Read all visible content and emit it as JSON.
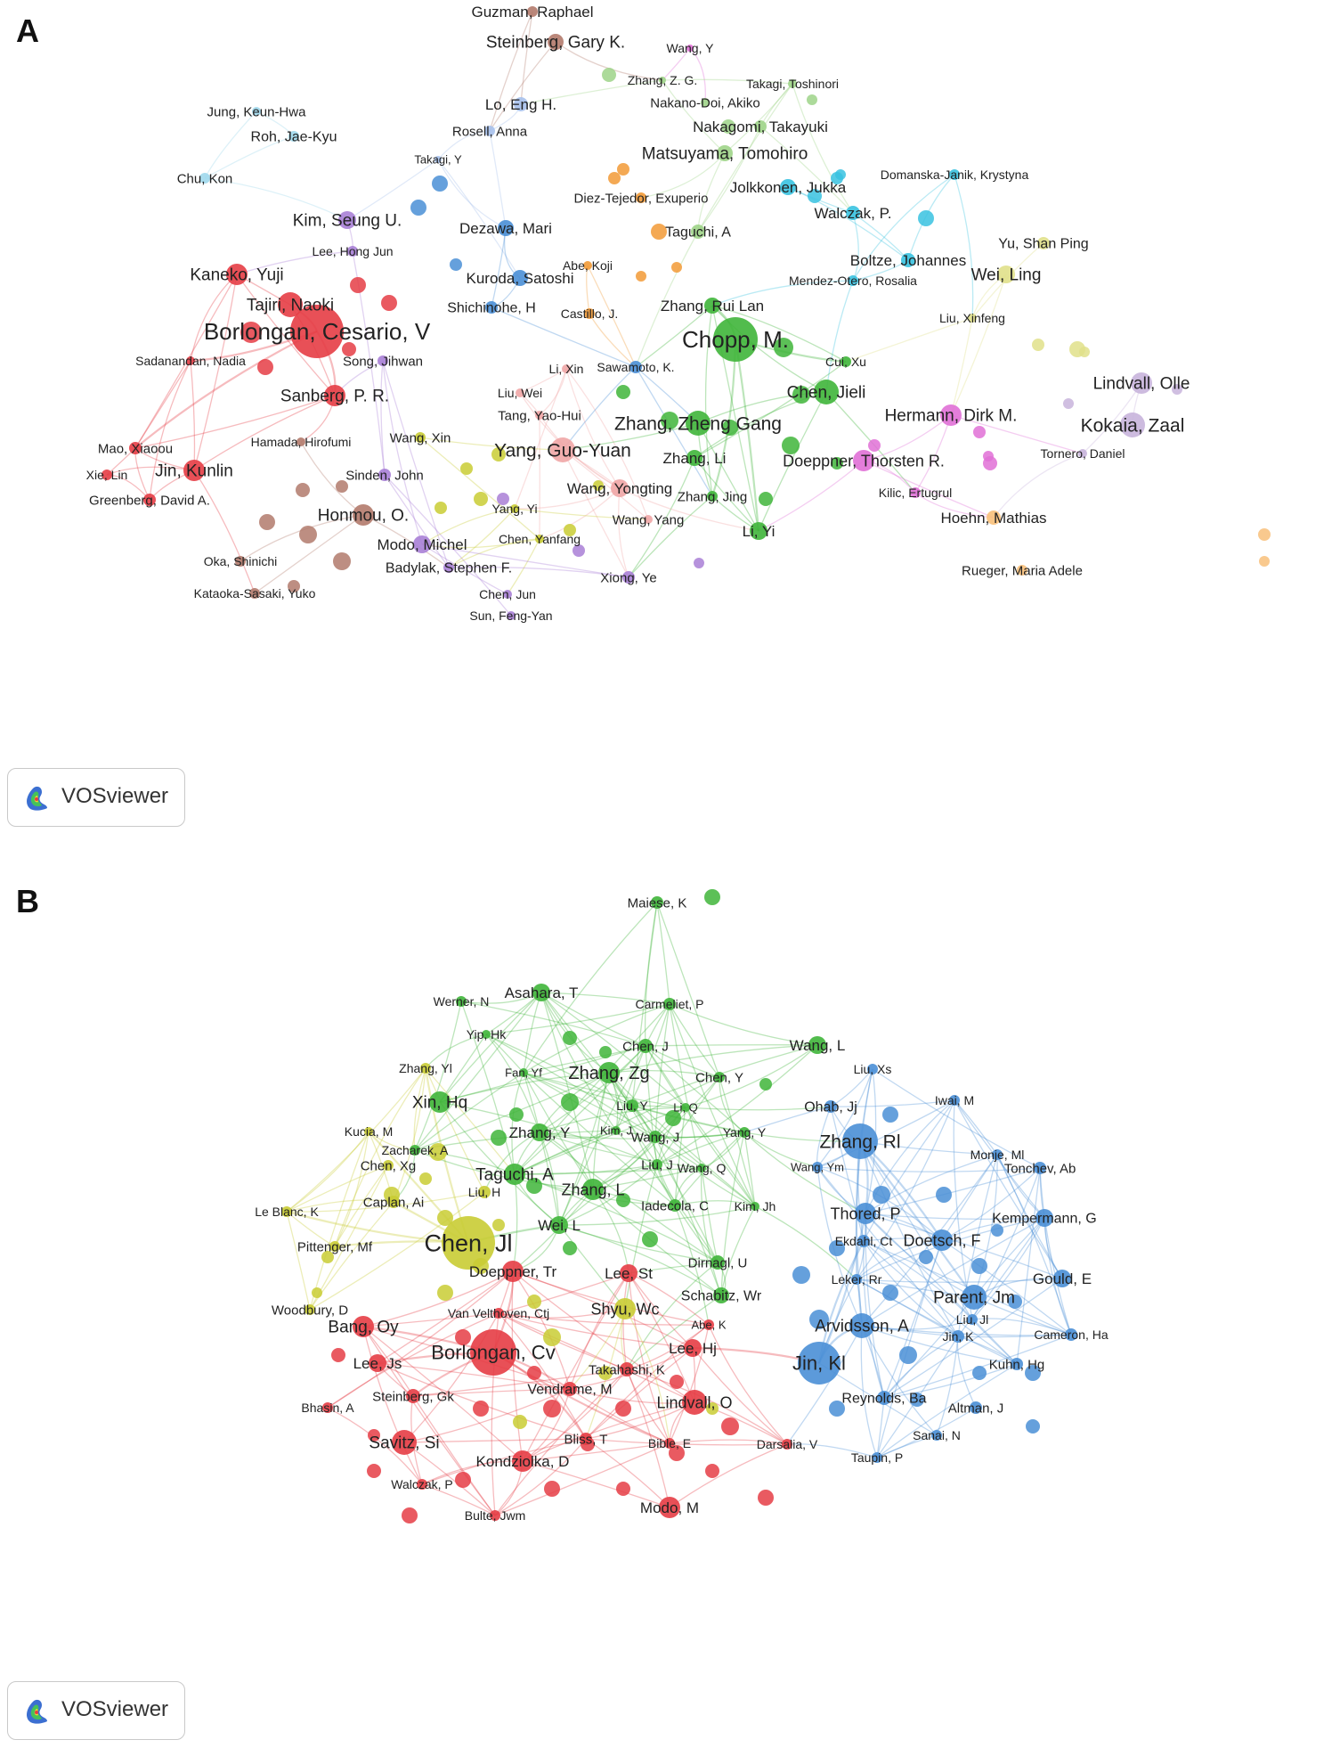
{
  "panels": [
    {
      "letter": "A",
      "logo_text": "VOSviewer",
      "colors": {
        "red": "#e53d45",
        "green": "#3fb53a",
        "blue": "#4a8fd6",
        "yellow": "#c9cc34",
        "purple": "#a97fd6",
        "brown": "#b27a6c",
        "orange": "#f29a36",
        "cyan": "#38c2e0",
        "lightblue": "#a7c1ec",
        "pink": "#e070d6",
        "lightgreen": "#9ed488",
        "lavender": "#c8b4dc",
        "paleyellow": "#e0e08a",
        "salmon": "#f0a6a6",
        "peach": "#f8c07a",
        "skyblue": "#9fd8ec"
      },
      "nodes": [
        {
          "label": "Guzman, Raphael",
          "c": "brown",
          "s": 6,
          "fs": 17
        },
        {
          "label": "Steinberg, Gary K.",
          "c": "brown",
          "s": 9,
          "fs": 19
        },
        {
          "label": "Wang, Y",
          "c": "pink",
          "s": 4,
          "fs": 14
        },
        {
          "label": "Zhang, Z. G.",
          "c": "lightgreen",
          "s": 4,
          "fs": 14
        },
        {
          "label": "Takagi, Toshinori",
          "c": "lightgreen",
          "s": 5,
          "fs": 14
        },
        {
          "label": "Nakano-Doi, Akiko",
          "c": "lightgreen",
          "s": 5,
          "fs": 15
        },
        {
          "label": "Nakagomi, Takayuki",
          "c": "lightgreen",
          "s": 7,
          "fs": 17
        },
        {
          "label": "Matsuyama, Tomohiro",
          "c": "lightgreen",
          "s": 9,
          "fs": 19
        },
        {
          "label": "Jung, Keun-Hwa",
          "c": "skyblue",
          "s": 5,
          "fs": 15
        },
        {
          "label": "Roh, Jae-Kyu",
          "c": "skyblue",
          "s": 6,
          "fs": 16
        },
        {
          "label": "Chu, Kon",
          "c": "skyblue",
          "s": 6,
          "fs": 15
        },
        {
          "label": "Lo, Eng H.",
          "c": "lightblue",
          "s": 8,
          "fs": 17
        },
        {
          "label": "Rosell, Anna",
          "c": "lightblue",
          "s": 6,
          "fs": 15
        },
        {
          "label": "Takagi, Y",
          "c": "lightblue",
          "s": 4,
          "fs": 13
        },
        {
          "label": "Diez-Tejedor, Exuperio",
          "c": "orange",
          "s": 6,
          "fs": 15
        },
        {
          "label": "Domanska-Janik, Krystyna",
          "c": "cyan",
          "s": 6,
          "fs": 14
        },
        {
          "label": "Jolkkonen, Jukka",
          "c": "cyan",
          "s": 9,
          "fs": 17
        },
        {
          "label": "Walczak, P.",
          "c": "cyan",
          "s": 8,
          "fs": 17
        },
        {
          "label": "Kim, Seung U.",
          "c": "purple",
          "s": 10,
          "fs": 19
        },
        {
          "label": "Dezawa, Mari",
          "c": "blue",
          "s": 9,
          "fs": 17
        },
        {
          "label": "Taguchi, A",
          "c": "lightgreen",
          "s": 8,
          "fs": 16
        },
        {
          "label": "Yu, Shan Ping",
          "c": "paleyellow",
          "s": 7,
          "fs": 16
        },
        {
          "label": "Lee, Hong Jun",
          "c": "purple",
          "s": 6,
          "fs": 14
        },
        {
          "label": "Boltze, Johannes",
          "c": "cyan",
          "s": 8,
          "fs": 17
        },
        {
          "label": "Kaneko, Yuji",
          "c": "red",
          "s": 12,
          "fs": 19
        },
        {
          "label": "Abe, Koji",
          "c": "orange",
          "s": 5,
          "fs": 14
        },
        {
          "label": "Wei, Ling",
          "c": "paleyellow",
          "s": 10,
          "fs": 19
        },
        {
          "label": "Kuroda, Satoshi",
          "c": "blue",
          "s": 9,
          "fs": 17
        },
        {
          "label": "Mendez-Otero, Rosalia",
          "c": "cyan",
          "s": 6,
          "fs": 14
        },
        {
          "label": "Tajiri, Naoki",
          "c": "red",
          "s": 14,
          "fs": 19
        },
        {
          "label": "Shichinohe, H",
          "c": "blue",
          "s": 7,
          "fs": 16
        },
        {
          "label": "Castillo, J.",
          "c": "orange",
          "s": 6,
          "fs": 14
        },
        {
          "label": "Zhang, Rui Lan",
          "c": "green",
          "s": 9,
          "fs": 17
        },
        {
          "label": "Liu, Xinfeng",
          "c": "paleyellow",
          "s": 5,
          "fs": 14
        },
        {
          "label": "Borlongan, Cesario, V",
          "c": "red",
          "s": 30,
          "fs": 26
        },
        {
          "label": "Chopp, M.",
          "c": "green",
          "s": 25,
          "fs": 26
        },
        {
          "label": "Sadanandan, Nadia",
          "c": "red",
          "s": 5,
          "fs": 14
        },
        {
          "label": "Song, Jihwan",
          "c": "purple",
          "s": 6,
          "fs": 15
        },
        {
          "label": "Li, Xin",
          "c": "salmon",
          "s": 5,
          "fs": 14
        },
        {
          "label": "Sawamoto, K.",
          "c": "blue",
          "s": 7,
          "fs": 14
        },
        {
          "label": "Cui, Xu",
          "c": "green",
          "s": 6,
          "fs": 14
        },
        {
          "label": "Sanberg, P. R.",
          "c": "red",
          "s": 12,
          "fs": 19
        },
        {
          "label": "Lindvall, Olle",
          "c": "lavender",
          "s": 12,
          "fs": 19
        },
        {
          "label": "Chen, Jieli",
          "c": "green",
          "s": 14,
          "fs": 19
        },
        {
          "label": "Liu, Wei",
          "c": "salmon",
          "s": 5,
          "fs": 14
        },
        {
          "label": "Tang, Yao-Hui",
          "c": "salmon",
          "s": 5,
          "fs": 15
        },
        {
          "label": "Hermann, Dirk M.",
          "c": "pink",
          "s": 12,
          "fs": 19
        },
        {
          "label": "Zhang, Zheng Gang",
          "c": "green",
          "s": 14,
          "fs": 21
        },
        {
          "label": "Kokaia, Zaal",
          "c": "lavender",
          "s": 14,
          "fs": 21
        },
        {
          "label": "Mao, Xiaoou",
          "c": "red",
          "s": 7,
          "fs": 15
        },
        {
          "label": "Hamada, Hirofumi",
          "c": "brown",
          "s": 5,
          "fs": 14
        },
        {
          "label": "Wang, Xin",
          "c": "yellow",
          "s": 6,
          "fs": 15
        },
        {
          "label": "Yang, Guo-Yuan",
          "c": "salmon",
          "s": 14,
          "fs": 21
        },
        {
          "label": "Jin, Kunlin",
          "c": "red",
          "s": 12,
          "fs": 19
        },
        {
          "label": "Tornero, Daniel",
          "c": "lavender",
          "s": 5,
          "fs": 14
        },
        {
          "label": "Xie, Lin",
          "c": "red",
          "s": 6,
          "fs": 14
        },
        {
          "label": "Zhang, Li",
          "c": "green",
          "s": 9,
          "fs": 17
        },
        {
          "label": "Doeppner, Thorsten R.",
          "c": "pink",
          "s": 12,
          "fs": 18
        },
        {
          "label": "Sinden, John",
          "c": "purple",
          "s": 7,
          "fs": 15
        },
        {
          "label": "Greenberg, David A.",
          "c": "red",
          "s": 7,
          "fs": 15
        },
        {
          "label": "Wang, Yongting",
          "c": "salmon",
          "s": 10,
          "fs": 17
        },
        {
          "label": "Kilic, Ertugrul",
          "c": "pink",
          "s": 6,
          "fs": 14
        },
        {
          "label": "Zhang, Jing",
          "c": "green",
          "s": 6,
          "fs": 15
        },
        {
          "label": "Yang, Yi",
          "c": "yellow",
          "s": 5,
          "fs": 14
        },
        {
          "label": "Honmou, O.",
          "c": "brown",
          "s": 12,
          "fs": 19
        },
        {
          "label": "Wang, Yang",
          "c": "salmon",
          "s": 5,
          "fs": 15
        },
        {
          "label": "Hoehn, Mathias",
          "c": "peach",
          "s": 8,
          "fs": 17
        },
        {
          "label": "Li, Yi",
          "c": "green",
          "s": 10,
          "fs": 17
        },
        {
          "label": "Chen, Yanfang",
          "c": "yellow",
          "s": 5,
          "fs": 14
        },
        {
          "label": "Modo, Michel",
          "c": "purple",
          "s": 10,
          "fs": 17
        },
        {
          "label": "Oka, Shinichi",
          "c": "brown",
          "s": 6,
          "fs": 14
        },
        {
          "label": "Badylak, Stephen F.",
          "c": "purple",
          "s": 6,
          "fs": 16
        },
        {
          "label": "Rueger, Maria Adele",
          "c": "peach",
          "s": 6,
          "fs": 15
        },
        {
          "label": "Xiong, Ye",
          "c": "purple",
          "s": 7,
          "fs": 15
        },
        {
          "label": "Kataoka-Sasaki, Yuko",
          "c": "brown",
          "s": 6,
          "fs": 14
        },
        {
          "label": "Chen, Jun",
          "c": "purple",
          "s": 5,
          "fs": 14
        },
        {
          "label": "Sun, Feng-Yan",
          "c": "purple",
          "s": 5,
          "fs": 14
        }
      ]
    },
    {
      "letter": "B",
      "logo_text": "VOSviewer",
      "colors": {
        "red": "#e53d45",
        "green": "#3fb53a",
        "blue": "#4a8fd6",
        "yellow": "#c9cc34"
      },
      "nodes": [
        {
          "label": "Maiese, K",
          "c": "green",
          "s": 7,
          "fs": 15
        },
        {
          "label": "Asahara, T",
          "c": "green",
          "s": 10,
          "fs": 17
        },
        {
          "label": "Werner, N",
          "c": "green",
          "s": 6,
          "fs": 14
        },
        {
          "label": "Carmeliet, P",
          "c": "green",
          "s": 7,
          "fs": 14
        },
        {
          "label": "Yip, Hk",
          "c": "green",
          "s": 5,
          "fs": 14
        },
        {
          "label": "Chen, J",
          "c": "green",
          "s": 8,
          "fs": 15
        },
        {
          "label": "Wang, L",
          "c": "green",
          "s": 10,
          "fs": 17
        },
        {
          "label": "Zhang, Yl",
          "c": "yellow",
          "s": 6,
          "fs": 14
        },
        {
          "label": "Fan, Yf",
          "c": "green",
          "s": 5,
          "fs": 13
        },
        {
          "label": "Zhang, Zg",
          "c": "green",
          "s": 12,
          "fs": 20
        },
        {
          "label": "Liu, Xs",
          "c": "blue",
          "s": 6,
          "fs": 14
        },
        {
          "label": "Chen, Y",
          "c": "green",
          "s": 6,
          "fs": 15
        },
        {
          "label": "Xin, Hq",
          "c": "green",
          "s": 12,
          "fs": 19
        },
        {
          "label": "Liu, Y",
          "c": "green",
          "s": 7,
          "fs": 14
        },
        {
          "label": "Li, Q",
          "c": "green",
          "s": 5,
          "fs": 13
        },
        {
          "label": "Ohab, Jj",
          "c": "blue",
          "s": 7,
          "fs": 16
        },
        {
          "label": "Iwai, M",
          "c": "blue",
          "s": 6,
          "fs": 14
        },
        {
          "label": "Kucia, M",
          "c": "yellow",
          "s": 5,
          "fs": 14
        },
        {
          "label": "Zhang, Y",
          "c": "green",
          "s": 10,
          "fs": 17
        },
        {
          "label": "Kim, J",
          "c": "green",
          "s": 5,
          "fs": 13
        },
        {
          "label": "Yang, Y",
          "c": "green",
          "s": 6,
          "fs": 14
        },
        {
          "label": "Zacharek, A",
          "c": "green",
          "s": 6,
          "fs": 14
        },
        {
          "label": "Wang, J",
          "c": "green",
          "s": 7,
          "fs": 15
        },
        {
          "label": "Zhang, Rl",
          "c": "blue",
          "s": 20,
          "fs": 21
        },
        {
          "label": "Monje, Ml",
          "c": "blue",
          "s": 6,
          "fs": 14
        },
        {
          "label": "Chen, Xg",
          "c": "yellow",
          "s": 6,
          "fs": 15
        },
        {
          "label": "Taguchi, A",
          "c": "green",
          "s": 12,
          "fs": 19
        },
        {
          "label": "Liu, J",
          "c": "green",
          "s": 6,
          "fs": 15
        },
        {
          "label": "Wang, Q",
          "c": "green",
          "s": 5,
          "fs": 14
        },
        {
          "label": "Wang, Ym",
          "c": "blue",
          "s": 6,
          "fs": 13
        },
        {
          "label": "Tonchev, Ab",
          "c": "blue",
          "s": 7,
          "fs": 15
        },
        {
          "label": "Liu, H",
          "c": "yellow",
          "s": 7,
          "fs": 14
        },
        {
          "label": "Zhang, L",
          "c": "green",
          "s": 12,
          "fs": 18
        },
        {
          "label": "Caplan, Ai",
          "c": "yellow",
          "s": 7,
          "fs": 15
        },
        {
          "label": "Iadecola, C",
          "c": "green",
          "s": 7,
          "fs": 15
        },
        {
          "label": "Kim, Jh",
          "c": "green",
          "s": 5,
          "fs": 14
        },
        {
          "label": "Thored, P",
          "c": "blue",
          "s": 12,
          "fs": 18
        },
        {
          "label": "Le Blanc, K",
          "c": "yellow",
          "s": 6,
          "fs": 14
        },
        {
          "label": "Kempermann, G",
          "c": "blue",
          "s": 10,
          "fs": 16
        },
        {
          "label": "Wei, L",
          "c": "green",
          "s": 10,
          "fs": 17
        },
        {
          "label": "Chen, Jl",
          "c": "yellow",
          "s": 30,
          "fs": 27
        },
        {
          "label": "Ekdahl, Ct",
          "c": "blue",
          "s": 7,
          "fs": 14
        },
        {
          "label": "Pittenger, Mf",
          "c": "yellow",
          "s": 6,
          "fs": 15
        },
        {
          "label": "Doetsch, F",
          "c": "blue",
          "s": 12,
          "fs": 18
        },
        {
          "label": "Dirnagl, U",
          "c": "green",
          "s": 8,
          "fs": 15
        },
        {
          "label": "Doeppner, Tr",
          "c": "red",
          "s": 12,
          "fs": 17
        },
        {
          "label": "Lee, St",
          "c": "red",
          "s": 10,
          "fs": 17
        },
        {
          "label": "Gould, E",
          "c": "blue",
          "s": 10,
          "fs": 17
        },
        {
          "label": "Leker, Rr",
          "c": "blue",
          "s": 6,
          "fs": 14
        },
        {
          "label": "Woodbury, D",
          "c": "yellow",
          "s": 6,
          "fs": 15
        },
        {
          "label": "Schabitz, Wr",
          "c": "green",
          "s": 9,
          "fs": 16
        },
        {
          "label": "Parent, Jm",
          "c": "blue",
          "s": 14,
          "fs": 19
        },
        {
          "label": "Van Velthoven, Ctj",
          "c": "red",
          "s": 6,
          "fs": 14
        },
        {
          "label": "Shyu, Wc",
          "c": "yellow",
          "s": 12,
          "fs": 18
        },
        {
          "label": "Bang, Oy",
          "c": "red",
          "s": 12,
          "fs": 19
        },
        {
          "label": "Abe, K",
          "c": "red",
          "s": 6,
          "fs": 13
        },
        {
          "label": "Arvidsson, A",
          "c": "blue",
          "s": 14,
          "fs": 19
        },
        {
          "label": "Liu, Jl",
          "c": "blue",
          "s": 6,
          "fs": 14
        },
        {
          "label": "Borlongan, Cv",
          "c": "red",
          "s": 26,
          "fs": 22
        },
        {
          "label": "Lee, Hj",
          "c": "red",
          "s": 10,
          "fs": 17
        },
        {
          "label": "Jin, K",
          "c": "blue",
          "s": 7,
          "fs": 14
        },
        {
          "label": "Cameron, Ha",
          "c": "blue",
          "s": 7,
          "fs": 14
        },
        {
          "label": "Lee, Js",
          "c": "red",
          "s": 10,
          "fs": 17
        },
        {
          "label": "Jin, Kl",
          "c": "blue",
          "s": 24,
          "fs": 22
        },
        {
          "label": "Takahashi, K",
          "c": "red",
          "s": 8,
          "fs": 15
        },
        {
          "label": "Kuhn, Hg",
          "c": "blue",
          "s": 7,
          "fs": 15
        },
        {
          "label": "Steinberg, Gk",
          "c": "red",
          "s": 8,
          "fs": 15
        },
        {
          "label": "Vendrame, M",
          "c": "red",
          "s": 8,
          "fs": 16
        },
        {
          "label": "Reynolds, Ba",
          "c": "blue",
          "s": 8,
          "fs": 16
        },
        {
          "label": "Bhasin, A",
          "c": "red",
          "s": 6,
          "fs": 14
        },
        {
          "label": "Lindvall, O",
          "c": "red",
          "s": 14,
          "fs": 18
        },
        {
          "label": "Altman, J",
          "c": "blue",
          "s": 7,
          "fs": 15
        },
        {
          "label": "Sanai, N",
          "c": "blue",
          "s": 6,
          "fs": 14
        },
        {
          "label": "Taupin, P",
          "c": "blue",
          "s": 6,
          "fs": 14
        },
        {
          "label": "Savitz, Si",
          "c": "red",
          "s": 14,
          "fs": 19
        },
        {
          "label": "Bliss, T",
          "c": "red",
          "s": 7,
          "fs": 15
        },
        {
          "label": "Bible, E",
          "c": "red",
          "s": 6,
          "fs": 14
        },
        {
          "label": "Darsalia, V",
          "c": "red",
          "s": 6,
          "fs": 14
        },
        {
          "label": "Kondziolka, D",
          "c": "red",
          "s": 12,
          "fs": 17
        },
        {
          "label": "Walczak, P",
          "c": "red",
          "s": 6,
          "fs": 14
        },
        {
          "label": "Modo, M",
          "c": "red",
          "s": 12,
          "fs": 17
        },
        {
          "label": "Bulte, Jwm",
          "c": "red",
          "s": 6,
          "fs": 14
        }
      ]
    }
  ]
}
